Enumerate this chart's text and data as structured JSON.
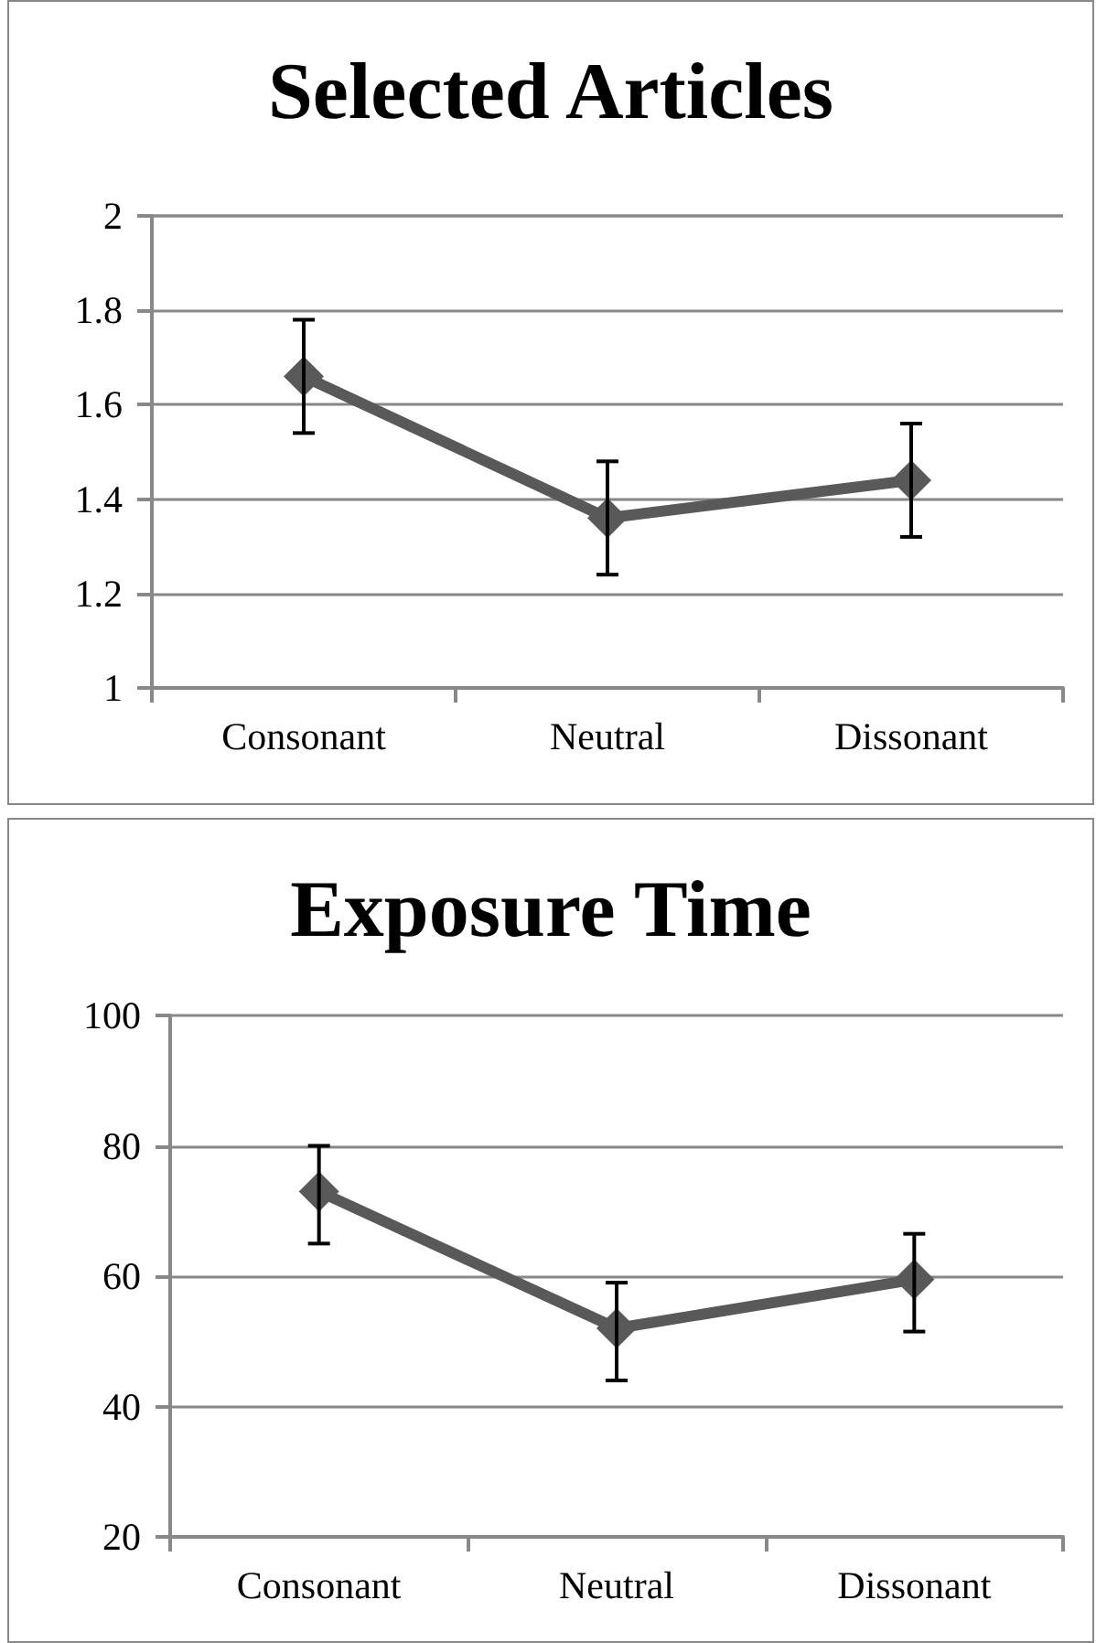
{
  "chart_data": [
    {
      "type": "line",
      "title": "Selected Articles",
      "categories": [
        "Consonant",
        "Neutral",
        "Dissonant"
      ],
      "series": [
        {
          "color": "#595959",
          "values": [
            1.66,
            1.36,
            1.44
          ],
          "errors": [
            0.12,
            0.12,
            0.12
          ]
        }
      ],
      "ylim": [
        1,
        2
      ],
      "yticks": [
        1,
        1.2,
        1.4,
        1.6,
        1.8,
        2
      ],
      "grid": "y",
      "marker": "diamond"
    },
    {
      "type": "line",
      "title": "Exposure Time",
      "categories": [
        "Consonant",
        "Neutral",
        "Dissonant"
      ],
      "series": [
        {
          "color": "#595959",
          "values": [
            73,
            52,
            59.5
          ],
          "errors": [
            [
              65,
              80
            ],
            [
              44,
              59
            ],
            [
              51.5,
              66.5
            ]
          ]
        }
      ],
      "ylim": [
        20,
        100
      ],
      "yticks": [
        20,
        40,
        60,
        80,
        100
      ],
      "grid": "y",
      "marker": "diamond"
    }
  ]
}
